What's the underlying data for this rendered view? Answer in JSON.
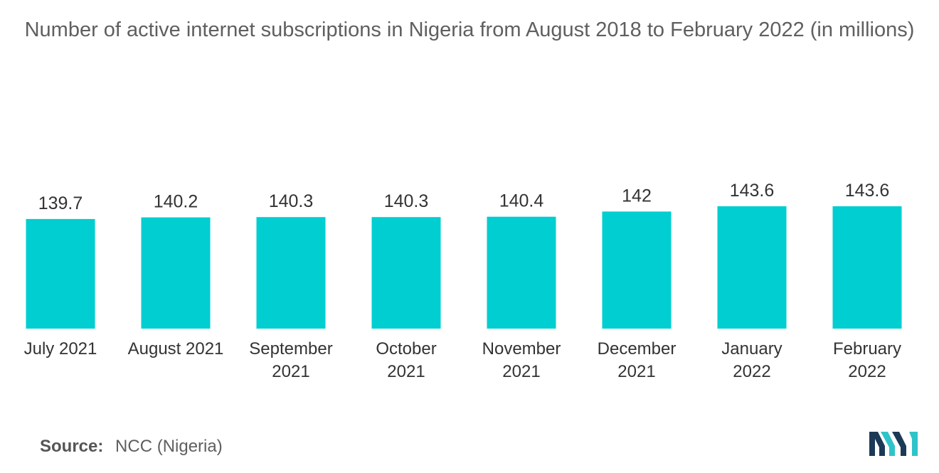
{
  "chart_data": {
    "type": "bar",
    "title": "Number of active internet subscriptions in Nigeria from August 2018 to February 2022 (in millions)",
    "categories": [
      [
        "July 2021"
      ],
      [
        "August 2021"
      ],
      [
        "September",
        "2021"
      ],
      [
        "October",
        "2021"
      ],
      [
        "November",
        "2021"
      ],
      [
        "December",
        "2021"
      ],
      [
        "January",
        "2022"
      ],
      [
        "February",
        "2022"
      ]
    ],
    "values": [
      139.7,
      140.2,
      140.3,
      140.3,
      140.4,
      142,
      143.6,
      143.6
    ],
    "value_labels": [
      "139.7",
      "140.2",
      "140.3",
      "140.3",
      "140.4",
      "142",
      "143.6",
      "143.6"
    ],
    "bar_color": "#00CED1",
    "xlabel": "",
    "ylabel": "",
    "grid": false,
    "legend": "none"
  },
  "source": {
    "label": "Source:",
    "text": "NCC (Nigeria)"
  },
  "logo": {
    "icon": "mordor-intelligence-logo-icon",
    "colors": [
      "#1B3A57",
      "#2EC4C9"
    ]
  }
}
